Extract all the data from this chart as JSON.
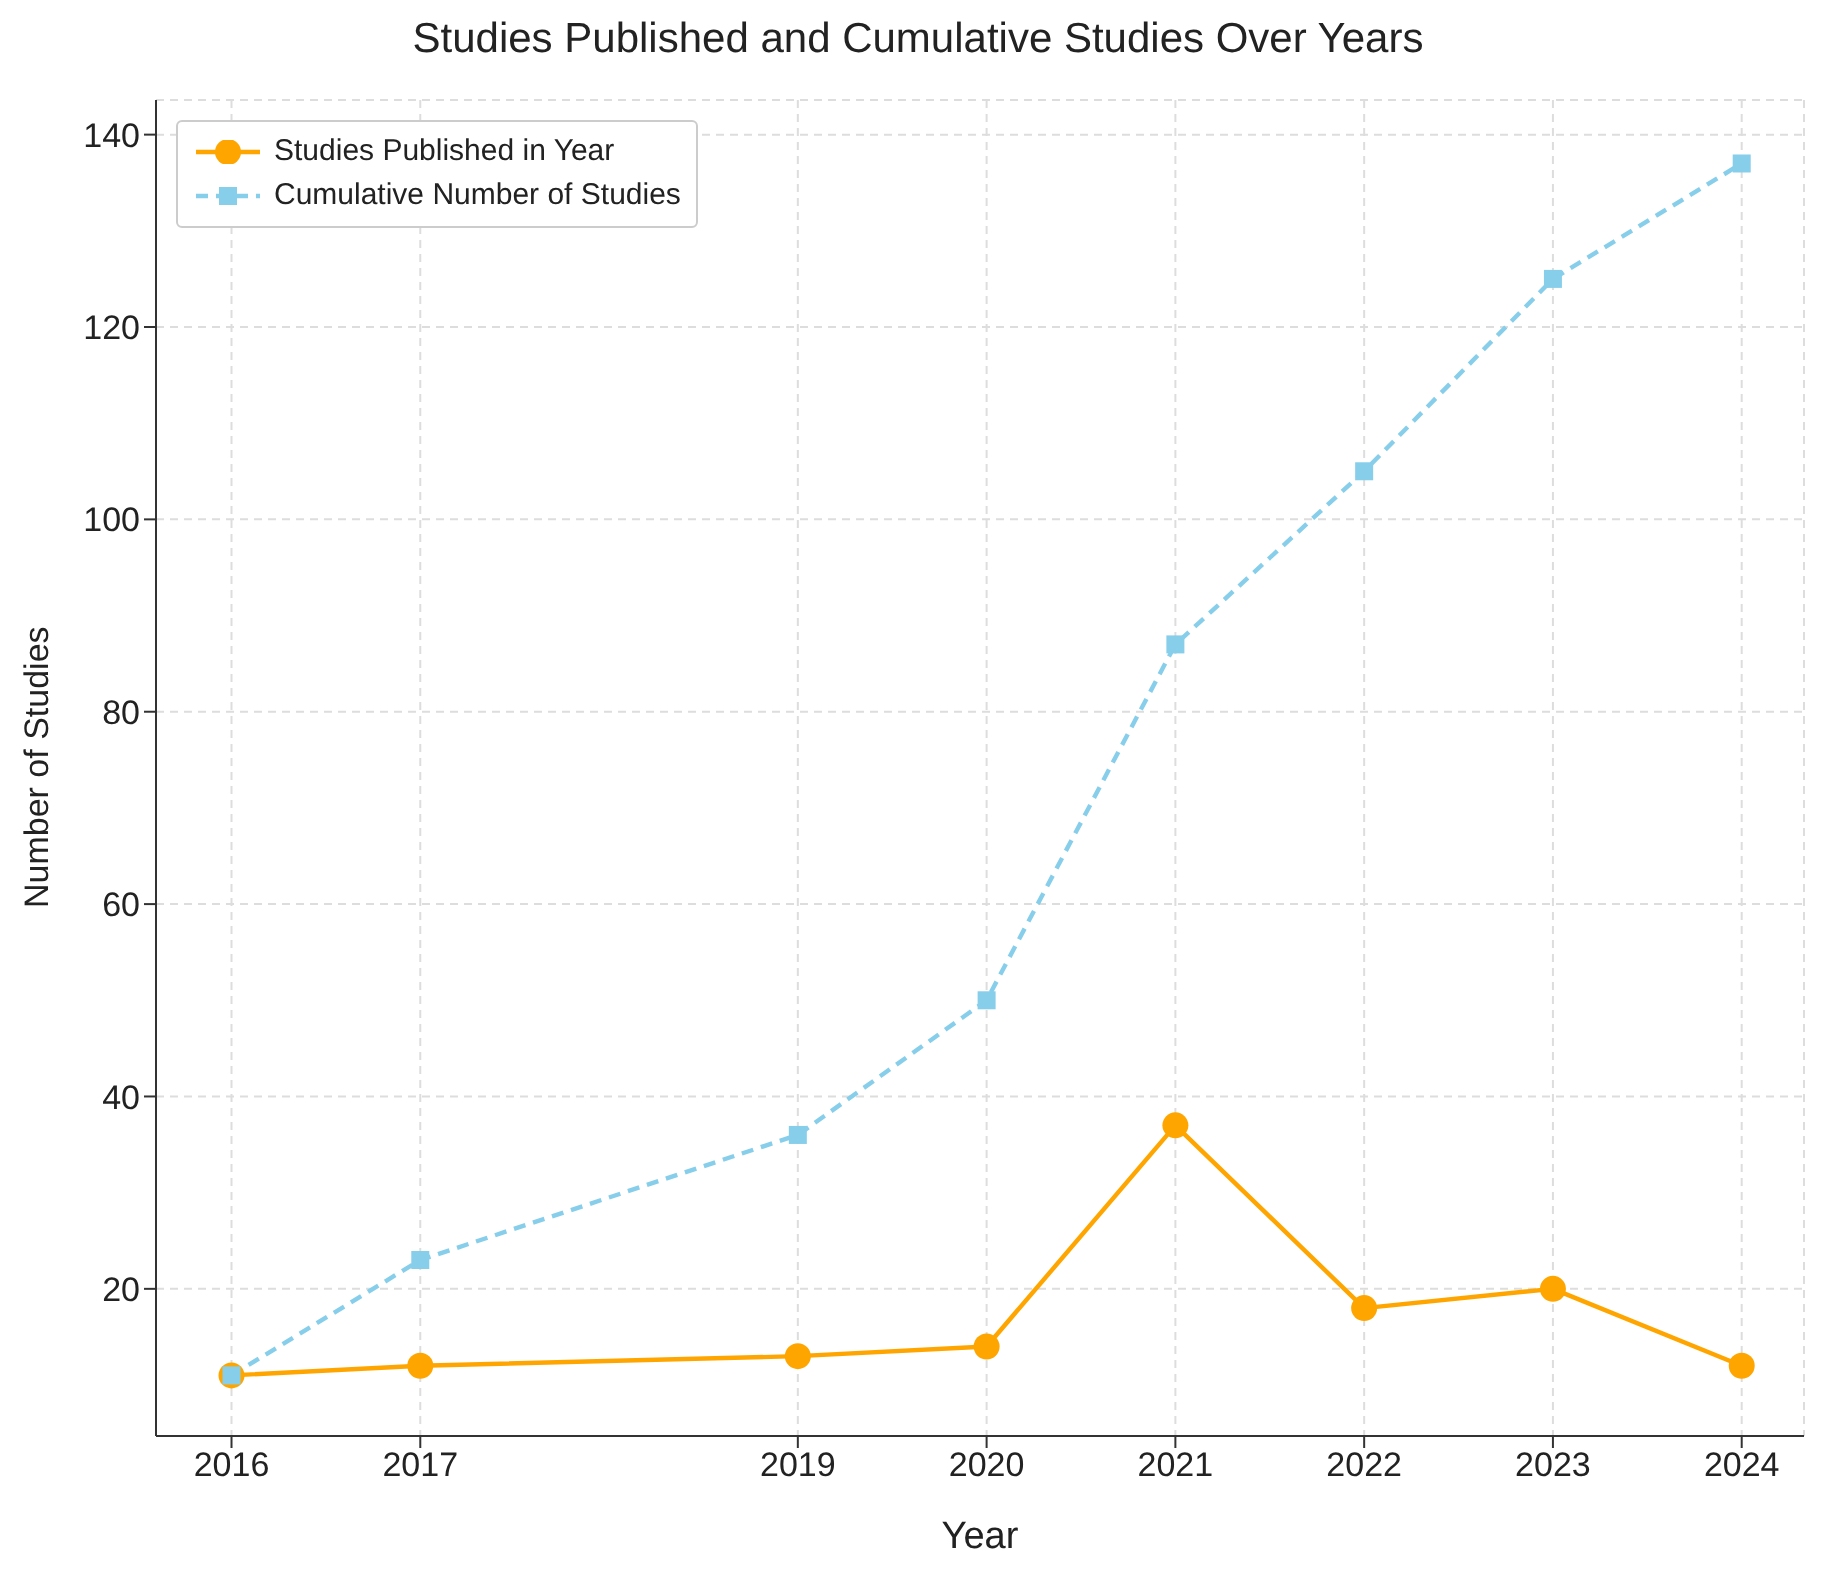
{
  "chart_data": {
    "type": "line",
    "title": "Studies Published and Cumulative Studies Over Years",
    "xlabel": "Year",
    "ylabel": "Number of Studies",
    "x": [
      2016,
      2017,
      2019,
      2020,
      2021,
      2022,
      2023,
      2024
    ],
    "series": [
      {
        "name": "Studies Published in Year",
        "color": "#ffa500",
        "values": [
          11,
          12,
          13,
          14,
          37,
          18,
          20,
          12
        ],
        "marker": "circle",
        "line_style": "solid"
      },
      {
        "name": "Cumulative Number of Studies",
        "color": "#87ceeb",
        "values": [
          11,
          23,
          36,
          50,
          87,
          105,
          125,
          137
        ],
        "marker": "square",
        "line_style": "dashed"
      }
    ],
    "xlim": [
      2015.6,
      2024.33
    ],
    "xticks": [
      2016,
      2017,
      2019,
      2020,
      2021,
      2022,
      2023,
      2024
    ],
    "ylim": [
      4.7,
      143.6
    ],
    "yticks": [
      20,
      40,
      60,
      80,
      100,
      120,
      140
    ],
    "grid": true,
    "legend": "top left"
  }
}
